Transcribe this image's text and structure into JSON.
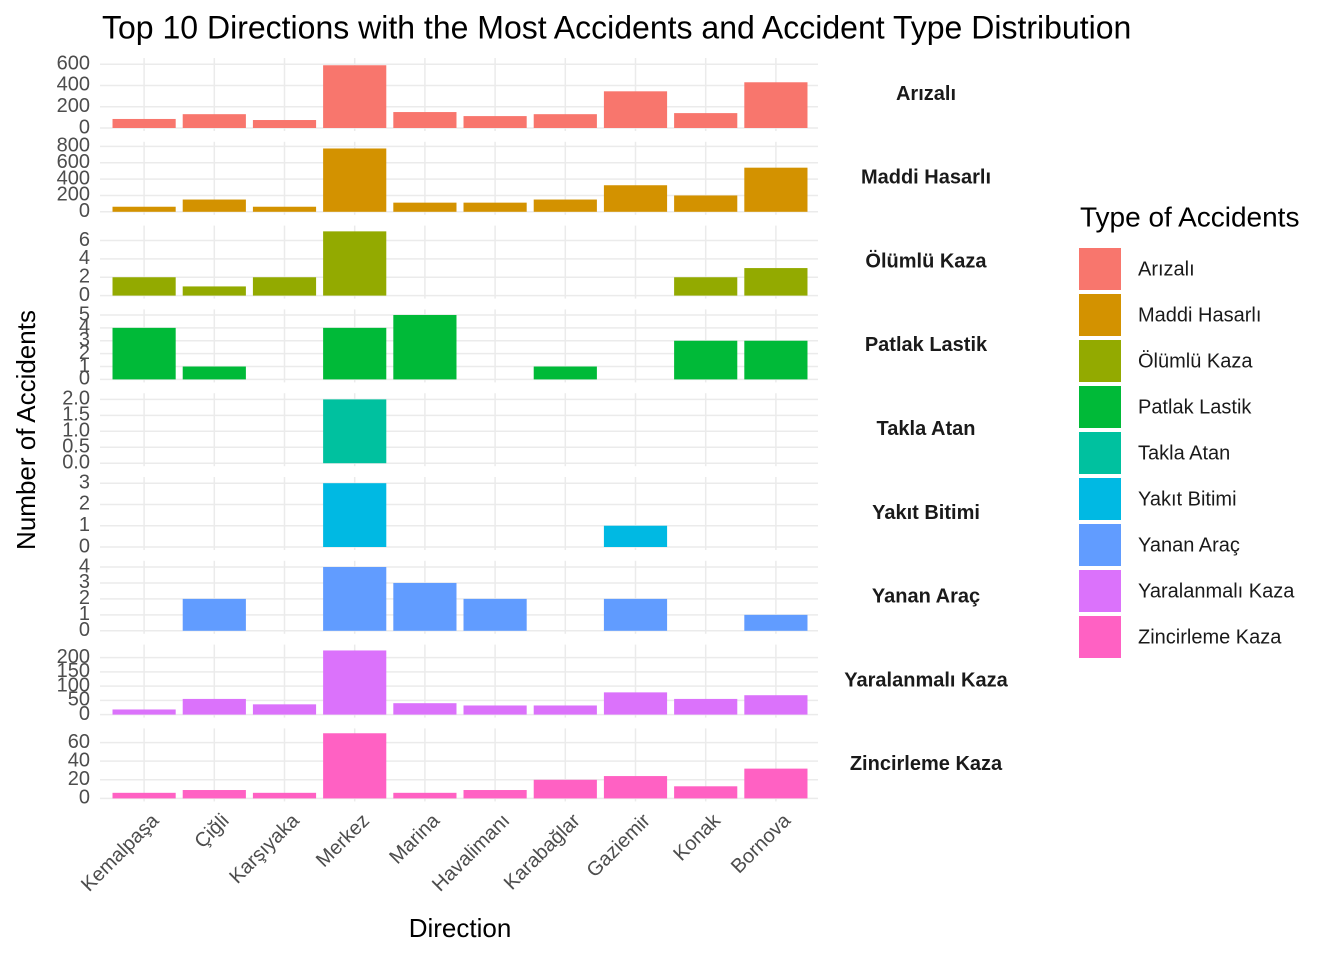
{
  "chart_data": {
    "type": "bar",
    "title": "Top 10 Directions with the Most Accidents and Accident Type Distribution",
    "x_label": "Direction",
    "y_label": "Number of Accidents",
    "legend_title": "Type of Accidents",
    "grid": true,
    "categories": [
      "Kemalpaşa",
      "Çiğli",
      "Karşıyaka",
      "Merkez",
      "Marina",
      "Havalimanı",
      "Karabağlar",
      "Gaziemir",
      "Konak",
      "Bornova"
    ],
    "facets": [
      {
        "name": "Arızalı",
        "color": "#f8766d",
        "values": [
          85,
          130,
          75,
          590,
          150,
          112,
          130,
          345,
          140,
          430
        ],
        "ylim": [
          0,
          630
        ],
        "yticks": [
          0,
          200,
          400,
          600
        ]
      },
      {
        "name": "Maddi Hasarlı",
        "color": "#d39200",
        "values": [
          62,
          150,
          62,
          775,
          112,
          112,
          150,
          325,
          200,
          540
        ],
        "ylim": [
          0,
          820
        ],
        "yticks": [
          0,
          200,
          400,
          600,
          800
        ]
      },
      {
        "name": "Ölümlü Kaza",
        "color": "#93aa00",
        "values": [
          2,
          1,
          2,
          7,
          null,
          null,
          null,
          null,
          2,
          3
        ],
        "ylim": [
          0,
          7.3
        ],
        "yticks": [
          0,
          2,
          4,
          6
        ]
      },
      {
        "name": "Patlak Lastik",
        "color": "#00ba38",
        "values": [
          4,
          1,
          null,
          4,
          5,
          null,
          1,
          null,
          3,
          3
        ],
        "ylim": [
          0,
          5.2
        ],
        "yticks": [
          0,
          1,
          2,
          3,
          4,
          5
        ]
      },
      {
        "name": "Takla Atan",
        "color": "#00c19f",
        "values": [
          null,
          null,
          null,
          2,
          null,
          null,
          null,
          null,
          null,
          null
        ],
        "ylim": [
          0,
          2.1
        ],
        "yticks": [
          {
            "value": 0,
            "label": "0.0"
          },
          {
            "value": 0.5,
            "label": "0.5"
          },
          {
            "value": 1,
            "label": "1.0"
          },
          {
            "value": 1.5,
            "label": "1.5"
          },
          {
            "value": 2,
            "label": "2.0"
          }
        ]
      },
      {
        "name": "Yakıt Bitimi",
        "color": "#00b9e3",
        "values": [
          null,
          null,
          null,
          3,
          null,
          null,
          null,
          1,
          null,
          null
        ],
        "ylim": [
          0,
          3.15
        ],
        "yticks": [
          0,
          1,
          2,
          3
        ]
      },
      {
        "name": "Yanan Araç",
        "color": "#619cff",
        "values": [
          null,
          2,
          null,
          4,
          3,
          2,
          null,
          2,
          null,
          1
        ],
        "ylim": [
          0,
          4.2
        ],
        "yticks": [
          0,
          1,
          2,
          3,
          4
        ]
      },
      {
        "name": "Yaralanmalı Kaza",
        "color": "#db72fb",
        "values": [
          18,
          55,
          36,
          225,
          40,
          32,
          32,
          78,
          55,
          68
        ],
        "ylim": [
          0,
          235
        ],
        "yticks": [
          0,
          50,
          100,
          150,
          200
        ]
      },
      {
        "name": "Zincirleme Kaza",
        "color": "#ff61c3",
        "values": [
          6,
          9,
          6,
          70,
          6,
          9,
          20,
          24,
          13,
          32
        ],
        "ylim": [
          0,
          72
        ],
        "yticks": [
          0,
          20,
          40,
          60
        ]
      }
    ]
  }
}
